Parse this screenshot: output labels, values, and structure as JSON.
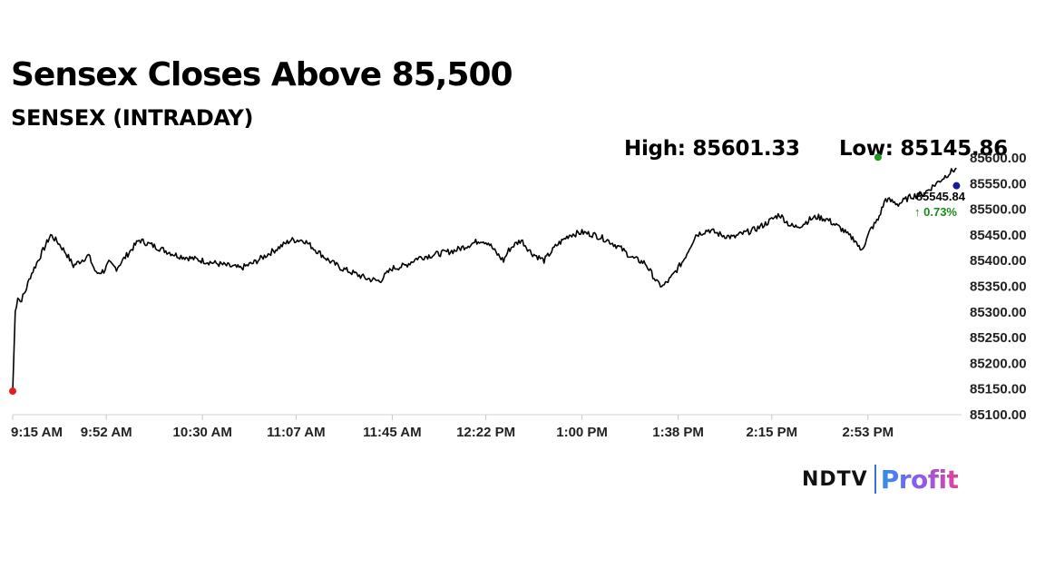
{
  "header": {
    "title": "Sensex Closes Above 85,500",
    "subtitle": "SENSEX (INTRADAY)",
    "high_label": "High: 85601.33",
    "low_label": "Low: 85145.86"
  },
  "brand": {
    "ndtv": "NDTV",
    "profit": "Profit"
  },
  "colors": {
    "line": "#000000",
    "low_marker": "#e02020",
    "high_marker": "#1a9a1a",
    "last_marker": "#1a1aa0",
    "change": "#1a8a1a"
  },
  "chart_data": {
    "type": "line",
    "title": "Sensex Closes Above 85,500",
    "subtitle": "SENSEX (INTRADAY)",
    "x_tick_labels": [
      "9:15 AM",
      "9:52 AM",
      "10:30 AM",
      "11:07 AM",
      "11:45 AM",
      "12:22 PM",
      "1:00 PM",
      "1:38 PM",
      "2:15 PM",
      "2:53 PM"
    ],
    "y_tick_labels": [
      "85600.00",
      "85550.00",
      "85500.00",
      "85450.00",
      "85400.00",
      "85350.00",
      "85300.00",
      "85250.00",
      "85200.00",
      "85150.00",
      "85100.00"
    ],
    "ylim": [
      85100,
      85600
    ],
    "x_range": [
      "9:15 AM",
      "3:30 PM"
    ],
    "high": 85601.33,
    "low": 85145.86,
    "last": "85545.84",
    "change_pct": "↑ 0.73%",
    "grid": false,
    "series": [
      {
        "x": [
          "9:15",
          "9:16",
          "9:17",
          "9:18",
          "9:20",
          "9:22",
          "9:25",
          "9:28",
          "9:30",
          "9:33",
          "9:36",
          "9:39",
          "9:42",
          "9:45",
          "9:48",
          "9:51",
          "9:53",
          "9:56",
          "10:00",
          "10:05",
          "10:10",
          "10:15",
          "10:20",
          "10:25",
          "10:30",
          "10:35",
          "10:40",
          "10:45",
          "10:50",
          "10:55",
          "11:00",
          "11:05",
          "11:10",
          "11:15",
          "11:20",
          "11:25",
          "11:30",
          "11:35",
          "11:40",
          "11:45",
          "11:50",
          "11:55",
          "12:00",
          "12:05",
          "12:10",
          "12:15",
          "12:20",
          "12:23",
          "12:26",
          "12:29",
          "12:31",
          "12:33",
          "12:36",
          "12:40",
          "12:45",
          "12:50",
          "12:55",
          "13:00",
          "13:05",
          "13:10",
          "13:15",
          "13:20",
          "13:25",
          "13:30",
          "13:32",
          "13:35",
          "13:40",
          "13:45",
          "13:50",
          "13:55",
          "14:00",
          "14:02",
          "14:05",
          "14:08",
          "14:10",
          "14:12",
          "14:15",
          "14:18",
          "14:20",
          "14:22",
          "14:24",
          "14:27",
          "14:30",
          "14:33",
          "14:37",
          "14:40",
          "14:43",
          "14:45",
          "14:48",
          "14:50",
          "14:52",
          "14:54",
          "14:57",
          "15:00",
          "15:05",
          "15:10",
          "15:15",
          "15:20",
          "15:25",
          "15:28"
        ],
        "y": [
          85146,
          85300,
          85330,
          85320,
          85340,
          85370,
          85400,
          85430,
          85450,
          85435,
          85415,
          85390,
          85400,
          85410,
          85375,
          85380,
          85395,
          85385,
          85410,
          85440,
          85430,
          85420,
          85410,
          85405,
          85400,
          85395,
          85390,
          85385,
          85395,
          85410,
          85425,
          85440,
          85440,
          85420,
          85400,
          85385,
          85375,
          85365,
          85360,
          85385,
          85390,
          85405,
          85410,
          85415,
          85420,
          85430,
          85440,
          85435,
          85415,
          85400,
          85420,
          85430,
          85440,
          85415,
          85400,
          85430,
          85450,
          85455,
          85450,
          85440,
          85425,
          85405,
          85395,
          85355,
          85350,
          85365,
          85400,
          85450,
          85460,
          85450,
          85445,
          85450,
          85455,
          85460,
          85465,
          85470,
          85480,
          85490,
          85480,
          85470,
          85465,
          85470,
          85480,
          85485,
          85480,
          85470,
          85460,
          85450,
          85440,
          85420,
          85435,
          85460,
          85480,
          85520,
          85510,
          85525,
          85530,
          85550,
          85570,
          85580
        ]
      }
    ]
  }
}
